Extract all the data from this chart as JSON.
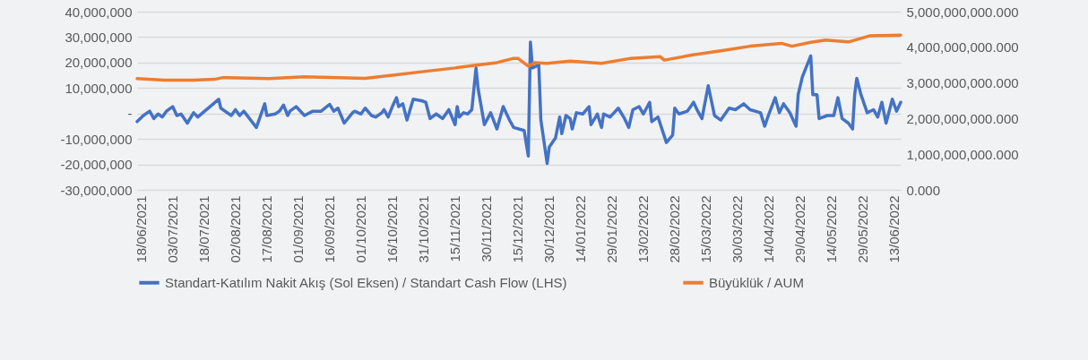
{
  "chart_data": {
    "type": "line",
    "xlim": [
      "2021-06-16",
      "2022-06-16"
    ],
    "xticks": [
      {
        "value": "2021-06-18",
        "label": "18/06/2021"
      },
      {
        "value": "2021-07-03",
        "label": "03/07/2021"
      },
      {
        "value": "2021-07-18",
        "label": "18/07/2021"
      },
      {
        "value": "2021-08-02",
        "label": "02/08/2021"
      },
      {
        "value": "2021-08-17",
        "label": "17/08/2021"
      },
      {
        "value": "2021-09-01",
        "label": "01/09/2021"
      },
      {
        "value": "2021-09-16",
        "label": "16/09/2021"
      },
      {
        "value": "2021-10-01",
        "label": "01/10/2021"
      },
      {
        "value": "2021-10-16",
        "label": "16/10/2021"
      },
      {
        "value": "2021-10-31",
        "label": "31/10/2021"
      },
      {
        "value": "2021-11-15",
        "label": "15/11/2021"
      },
      {
        "value": "2021-11-30",
        "label": "30/11/2021"
      },
      {
        "value": "2021-12-15",
        "label": "15/12/2021"
      },
      {
        "value": "2021-12-30",
        "label": "30/12/2021"
      },
      {
        "value": "2022-01-14",
        "label": "14/01/2022"
      },
      {
        "value": "2022-01-29",
        "label": "29/01/2022"
      },
      {
        "value": "2022-02-13",
        "label": "13/02/2022"
      },
      {
        "value": "2022-02-28",
        "label": "28/02/2022"
      },
      {
        "value": "2022-03-15",
        "label": "15/03/2022"
      },
      {
        "value": "2022-03-30",
        "label": "30/03/2022"
      },
      {
        "value": "2022-04-14",
        "label": "14/04/2022"
      },
      {
        "value": "2022-04-29",
        "label": "29/04/2022"
      },
      {
        "value": "2022-05-14",
        "label": "14/05/2022"
      },
      {
        "value": "2022-05-29",
        "label": "29/05/2022"
      },
      {
        "value": "2022-06-13",
        "label": "13/06/2022"
      }
    ],
    "ylim": [
      -30000000,
      40000000
    ],
    "yticks": [
      {
        "value": -30000000,
        "label": "-30,000,000"
      },
      {
        "value": -20000000,
        "label": "-20,000,000"
      },
      {
        "value": -10000000,
        "label": "-10,000,000"
      },
      {
        "value": 0,
        "label": "-"
      },
      {
        "value": 10000000,
        "label": "10,000,000"
      },
      {
        "value": 20000000,
        "label": "20,000,000"
      },
      {
        "value": 30000000,
        "label": "30,000,000"
      },
      {
        "value": 40000000,
        "label": "40,000,000"
      }
    ],
    "y2lim": [
      0,
      5000000000
    ],
    "y2ticks": [
      {
        "value": 0,
        "label": "0.000"
      },
      {
        "value": 1000000000,
        "label": "1,000,000,000.000"
      },
      {
        "value": 2000000000,
        "label": "2,000,000,000.000"
      },
      {
        "value": 3000000000,
        "label": "3,000,000,000.000"
      },
      {
        "value": 4000000000,
        "label": "4,000,000,000.000"
      },
      {
        "value": 5000000000,
        "label": "5,000,000,000.000"
      }
    ],
    "grid": "y",
    "legend": "bottom",
    "series": [
      {
        "name": "Standart-Katılım Nakit Akış (Sol Eksen) / Standart Cash Flow (LHS)",
        "color": "#4472c4",
        "x": [
          "2021-06-16",
          "2021-06-19",
          "2021-06-22",
          "2021-06-24",
          "2021-06-26",
          "2021-06-28",
          "2021-06-30",
          "2021-07-03",
          "2021-07-05",
          "2021-07-07",
          "2021-07-10",
          "2021-07-13",
          "2021-07-15",
          "2021-07-25",
          "2021-07-26",
          "2021-07-31",
          "2021-08-02",
          "2021-08-04",
          "2021-08-06",
          "2021-08-12",
          "2021-08-16",
          "2021-08-17",
          "2021-08-21",
          "2021-08-23",
          "2021-08-25",
          "2021-08-27",
          "2021-08-28",
          "2021-08-31",
          "2021-09-04",
          "2021-09-08",
          "2021-09-12",
          "2021-09-16",
          "2021-09-18",
          "2021-09-20",
          "2021-09-23",
          "2021-09-27",
          "2021-09-28",
          "2021-10-01",
          "2021-10-03",
          "2021-10-06",
          "2021-10-08",
          "2021-10-11",
          "2021-10-12",
          "2021-10-14",
          "2021-10-16",
          "2021-10-18",
          "2021-10-19",
          "2021-10-21",
          "2021-10-23",
          "2021-10-26",
          "2021-10-30",
          "2021-11-01",
          "2021-11-03",
          "2021-11-06",
          "2021-11-09",
          "2021-11-11",
          "2021-11-12",
          "2021-11-15",
          "2021-11-16",
          "2021-11-17",
          "2021-11-19",
          "2021-11-21",
          "2021-11-23",
          "2021-11-25",
          "2021-11-26",
          "2021-11-29",
          "2021-12-02",
          "2021-12-05",
          "2021-12-08",
          "2021-12-11",
          "2021-12-13",
          "2021-12-18",
          "2021-12-20",
          "2021-12-21",
          "2021-12-22",
          "2021-12-25",
          "2021-12-26",
          "2021-12-29",
          "2021-12-30",
          "2022-01-02",
          "2022-01-04",
          "2022-01-05",
          "2022-01-07",
          "2022-01-09",
          "2022-01-10",
          "2022-01-12",
          "2022-01-15",
          "2022-01-18",
          "2022-01-19",
          "2022-01-22",
          "2022-01-24",
          "2022-01-25",
          "2022-01-28",
          "2022-01-30",
          "2022-02-01",
          "2022-02-04",
          "2022-02-06",
          "2022-02-08",
          "2022-02-11",
          "2022-02-13",
          "2022-02-16",
          "2022-02-17",
          "2022-02-20",
          "2022-02-24",
          "2022-02-27",
          "2022-02-28",
          "2022-03-02",
          "2022-03-06",
          "2022-03-09",
          "2022-03-11",
          "2022-03-13",
          "2022-03-16",
          "2022-03-19",
          "2022-03-22",
          "2022-03-26",
          "2022-03-29",
          "2022-04-02",
          "2022-04-05",
          "2022-04-10",
          "2022-04-12",
          "2022-04-14",
          "2022-04-17",
          "2022-04-19",
          "2022-04-21",
          "2022-04-24",
          "2022-04-27",
          "2022-04-28",
          "2022-04-30",
          "2022-05-04",
          "2022-05-05",
          "2022-05-07",
          "2022-05-08",
          "2022-05-12",
          "2022-05-15",
          "2022-05-17",
          "2022-05-19",
          "2022-05-22",
          "2022-05-24",
          "2022-05-25",
          "2022-05-26",
          "2022-05-28",
          "2022-05-31",
          "2022-06-03",
          "2022-06-05",
          "2022-06-07",
          "2022-06-09",
          "2022-06-12",
          "2022-06-14",
          "2022-06-16"
        ],
        "values": [
          -3200000,
          -800000,
          900000,
          -2000000,
          -200000,
          -1400000,
          900000,
          2700000,
          -800000,
          -200000,
          -3800000,
          300000,
          -1400000,
          5600000,
          2100000,
          -800000,
          1500000,
          -800000,
          900000,
          -5500000,
          3800000,
          -800000,
          -200000,
          900000,
          3300000,
          -800000,
          900000,
          2700000,
          -800000,
          900000,
          900000,
          3600000,
          900000,
          2100000,
          -3800000,
          300000,
          900000,
          -200000,
          2100000,
          -800000,
          -1400000,
          300000,
          1500000,
          -1400000,
          2700000,
          6200000,
          2700000,
          3800000,
          -2600000,
          5600000,
          5000000,
          4400000,
          -2000000,
          -200000,
          -2000000,
          300000,
          1500000,
          -4400000,
          2700000,
          -1400000,
          300000,
          -200000,
          1500000,
          17900000,
          9700000,
          -4400000,
          300000,
          -6100000,
          2700000,
          -2600000,
          -5500000,
          -6700000,
          -16700000,
          28000000,
          17900000,
          19100000,
          -2600000,
          -19600000,
          -13200000,
          -9600000,
          -1400000,
          -7900000,
          -800000,
          -2000000,
          -6100000,
          300000,
          -200000,
          2700000,
          -4400000,
          -200000,
          -5500000,
          -200000,
          -1400000,
          300000,
          2100000,
          -2000000,
          -5500000,
          1500000,
          2700000,
          -200000,
          4400000,
          -3200000,
          -1400000,
          -11400000,
          -8500000,
          2100000,
          -200000,
          900000,
          4400000,
          900000,
          -2000000,
          10900000,
          -800000,
          -2600000,
          2100000,
          1500000,
          3800000,
          1500000,
          300000,
          -5000000,
          -200000,
          6200000,
          300000,
          3800000,
          300000,
          -5000000,
          7400000,
          14400000,
          22600000,
          7400000,
          7400000,
          -2000000,
          -800000,
          -800000,
          6200000,
          -2000000,
          -3800000,
          -6100000,
          7400000,
          13800000,
          7400000,
          300000,
          1500000,
          -1400000,
          4400000,
          -3800000,
          5600000,
          900000,
          4400000
        ]
      },
      {
        "name": "Büyüklük / AUM",
        "color": "#ed7d31",
        "axis": "y2",
        "x": [
          "2021-06-16",
          "2021-06-29",
          "2021-07-13",
          "2021-07-23",
          "2021-07-27",
          "2021-08-18",
          "2021-09-04",
          "2021-10-03",
          "2021-10-17",
          "2021-10-31",
          "2021-11-15",
          "2021-11-25",
          "2021-12-05",
          "2021-12-13",
          "2021-12-15",
          "2021-12-20",
          "2021-12-23",
          "2021-12-29",
          "2022-01-09",
          "2022-01-24",
          "2022-02-07",
          "2022-02-21",
          "2022-02-23",
          "2022-03-08",
          "2022-03-22",
          "2022-04-05",
          "2022-04-20",
          "2022-04-25",
          "2022-05-04",
          "2022-05-11",
          "2022-05-22",
          "2022-06-01",
          "2022-06-16"
        ],
        "values": [
          3120000000,
          3080000000,
          3080000000,
          3100000000,
          3150000000,
          3120000000,
          3170000000,
          3130000000,
          3220000000,
          3320000000,
          3420000000,
          3500000000,
          3570000000,
          3690000000,
          3690000000,
          3470000000,
          3570000000,
          3550000000,
          3610000000,
          3550000000,
          3690000000,
          3740000000,
          3640000000,
          3780000000,
          3900000000,
          4030000000,
          4110000000,
          4030000000,
          4140000000,
          4200000000,
          4150000000,
          4320000000,
          4340000000
        ]
      }
    ]
  }
}
